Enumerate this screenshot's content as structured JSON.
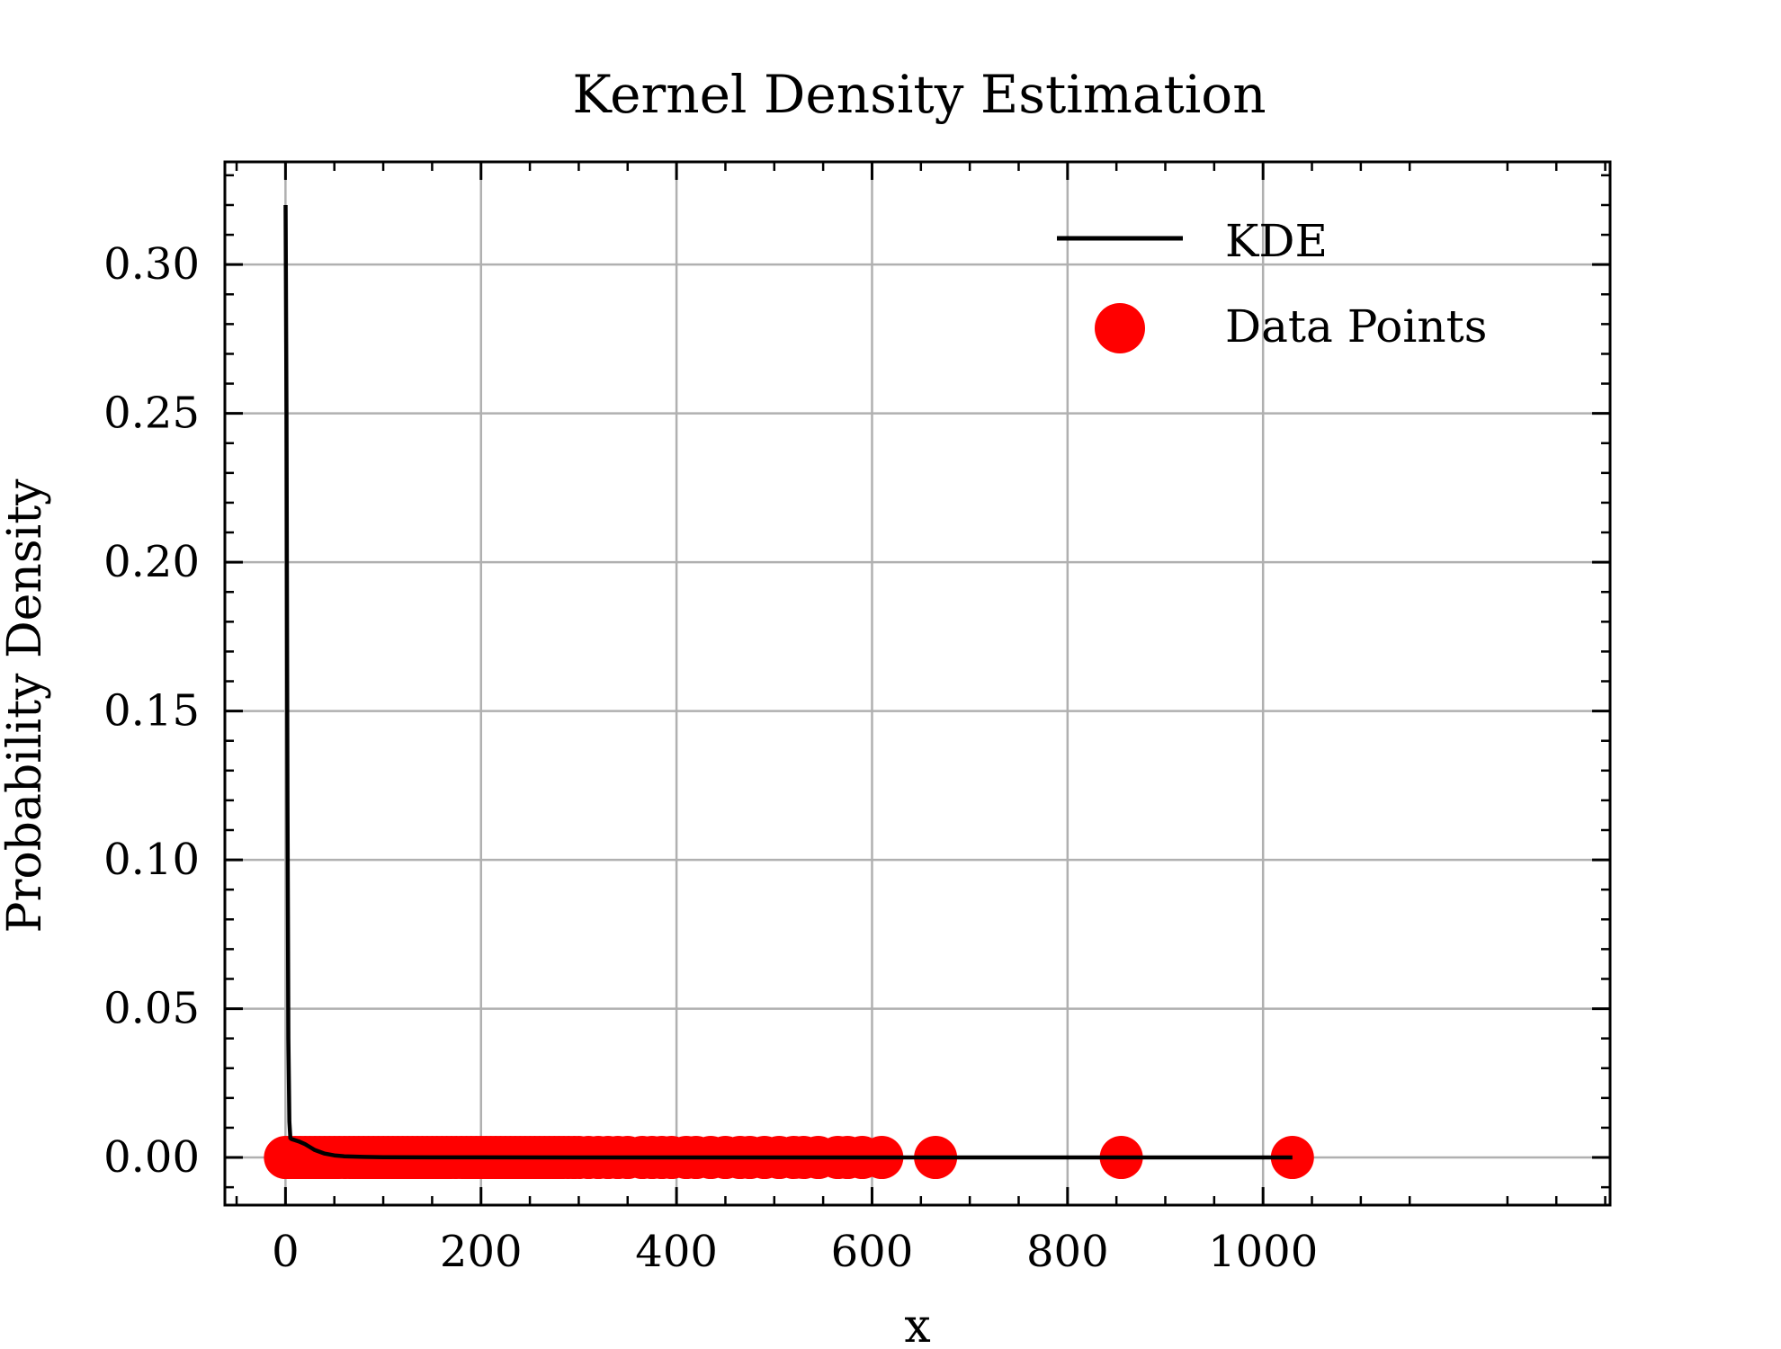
{
  "chart_data": {
    "type": "line",
    "title": "Kernel Density Estimation",
    "xlabel": "x",
    "ylabel": "Probability Density",
    "xlim": [
      -62,
      1355
    ],
    "ylim": [
      -0.016,
      0.3345
    ],
    "x_ticks": [
      0,
      200,
      400,
      600,
      800,
      1000
    ],
    "y_ticks": [
      0.0,
      0.05,
      0.1,
      0.15,
      0.2,
      0.25,
      0.3
    ],
    "x_tick_labels": [
      "0",
      "200",
      "400",
      "600",
      "800",
      "1000"
    ],
    "y_tick_labels": [
      "0.00",
      "0.05",
      "0.10",
      "0.15",
      "0.20",
      "0.25",
      "0.30"
    ],
    "grid": true,
    "legend": {
      "position": "top-right",
      "entries": [
        "KDE",
        "Data Points"
      ]
    },
    "colors": {
      "kde": "#000000",
      "points": "#ff0000",
      "grid": "#b0b0b0"
    },
    "series": [
      {
        "name": "KDE",
        "type": "line",
        "x": [
          0.1,
          1,
          2,
          3,
          4,
          5,
          6,
          8,
          10,
          15,
          20,
          25,
          30,
          40,
          50,
          60,
          80,
          100,
          150,
          200,
          300,
          400,
          500,
          600,
          700,
          800,
          900,
          1000,
          1030
        ],
        "y": [
          0.32,
          0.25,
          0.12,
          0.04,
          0.012,
          0.0065,
          0.0062,
          0.006,
          0.0058,
          0.0052,
          0.0045,
          0.0035,
          0.0025,
          0.0013,
          0.0007,
          0.0004,
          0.0002,
          0.0001,
          5e-05,
          3e-05,
          1e-05,
          0,
          0,
          0,
          0,
          0,
          0,
          0,
          0
        ]
      },
      {
        "name": "Data Points",
        "type": "scatter",
        "x": [
          0,
          5,
          10,
          15,
          20,
          25,
          30,
          35,
          40,
          45,
          50,
          55,
          60,
          65,
          70,
          75,
          80,
          85,
          90,
          95,
          100,
          105,
          110,
          115,
          120,
          125,
          130,
          135,
          140,
          145,
          150,
          155,
          160,
          165,
          170,
          175,
          180,
          185,
          190,
          195,
          200,
          205,
          210,
          215,
          220,
          225,
          230,
          235,
          240,
          245,
          250,
          255,
          260,
          265,
          270,
          275,
          280,
          285,
          290,
          295,
          300,
          310,
          320,
          330,
          340,
          350,
          365,
          375,
          385,
          395,
          410,
          420,
          435,
          450,
          465,
          475,
          490,
          505,
          520,
          530,
          545,
          565,
          575,
          590,
          610,
          665,
          855,
          1030
        ],
        "y": [
          0,
          0,
          0,
          0,
          0,
          0,
          0,
          0,
          0,
          0,
          0,
          0,
          0,
          0,
          0,
          0,
          0,
          0,
          0,
          0,
          0,
          0,
          0,
          0,
          0,
          0,
          0,
          0,
          0,
          0,
          0,
          0,
          0,
          0,
          0,
          0,
          0,
          0,
          0,
          0,
          0,
          0,
          0,
          0,
          0,
          0,
          0,
          0,
          0,
          0,
          0,
          0,
          0,
          0,
          0,
          0,
          0,
          0,
          0,
          0,
          0,
          0,
          0,
          0,
          0,
          0,
          0,
          0,
          0,
          0,
          0,
          0,
          0,
          0,
          0,
          0,
          0,
          0,
          0,
          0,
          0,
          0,
          0,
          0,
          0,
          0,
          0,
          0
        ]
      }
    ]
  }
}
